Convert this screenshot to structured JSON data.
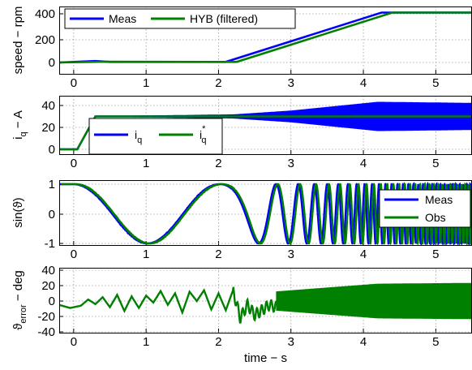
{
  "chart_data": [
    {
      "type": "line",
      "ylabel": "speed − rpm",
      "xlim": [
        -0.2,
        5.5
      ],
      "ylim": [
        -50,
        450
      ],
      "xticks": [
        "0",
        "1",
        "2",
        "3",
        "4",
        "5"
      ],
      "yticks": [
        "0",
        "200",
        "400"
      ],
      "grid": true,
      "legend": "top-left, horizontal",
      "series": [
        {
          "name": "Meas",
          "color": "#0000ff",
          "x": [
            -0.2,
            0.3,
            0.5,
            2.1,
            4.25,
            5.5
          ],
          "y": [
            0,
            12,
            5,
            5,
            410,
            410
          ]
        },
        {
          "name": "HYB (filtered)",
          "color": "#008000",
          "x": [
            -0.2,
            0.4,
            2.25,
            4.4,
            5.5
          ],
          "y": [
            0,
            6,
            5,
            410,
            410
          ]
        }
      ]
    },
    {
      "type": "line",
      "ylabel": "i_q − A",
      "xlim": [
        -0.2,
        5.5
      ],
      "ylim": [
        -5,
        50
      ],
      "xticks": [
        "0",
        "1",
        "2",
        "3",
        "4",
        "5"
      ],
      "yticks": [
        "0",
        "20",
        "40"
      ],
      "grid": true,
      "legend": "lower-left, horizontal",
      "series": [
        {
          "name": "i_q",
          "color": "#0000ff",
          "x": [
            -0.2,
            0.05,
            0.3,
            2.2,
            3.0,
            4.2,
            5.5
          ],
          "y_center": [
            0,
            0,
            30,
            30,
            30,
            30,
            30
          ],
          "y_amplitude": [
            0,
            0,
            0,
            1.5,
            5,
            13,
            12
          ]
        },
        {
          "name": "i_q*",
          "color": "#008000",
          "x": [
            -0.2,
            0.05,
            0.3,
            5.5
          ],
          "y": [
            0,
            0,
            30,
            30
          ]
        }
      ]
    },
    {
      "type": "line",
      "ylabel": "sin(ϑ)",
      "xlim": [
        -0.2,
        5.5
      ],
      "ylim": [
        -1,
        1
      ],
      "xticks": [
        "0",
        "1",
        "2",
        "3",
        "4",
        "5"
      ],
      "yticks": [
        "-1",
        "0",
        "1"
      ],
      "grid": true,
      "legend": "top-right, vertical",
      "series": [
        {
          "name": "Meas",
          "color": "#0000ff",
          "signal": "sin(theta(t)), theta integrated from measured speed"
        },
        {
          "name": "Obs",
          "color": "#008000",
          "signal": "sin(theta(t)), observer estimate"
        }
      ]
    },
    {
      "type": "line",
      "ylabel": "ϑ_error − deg",
      "xlabel": "time − s",
      "xlim": [
        -0.2,
        5.5
      ],
      "ylim": [
        -40,
        40
      ],
      "xticks": [
        "0",
        "1",
        "2",
        "3",
        "4",
        "5"
      ],
      "yticks": [
        "-40",
        "-20",
        "0",
        "20",
        "40"
      ],
      "grid": true,
      "series": [
        {
          "color": "#008000",
          "x": [
            -0.2,
            -0.05,
            0.1,
            0.2,
            0.3,
            0.4,
            0.5,
            0.6,
            0.7,
            0.8,
            0.9,
            1.0,
            1.1,
            1.2,
            1.3,
            1.4,
            1.5,
            1.6,
            1.7,
            1.8,
            1.9,
            2.0,
            2.1,
            2.2,
            2.3,
            2.4,
            2.5,
            2.6,
            2.7,
            2.8
          ],
          "y": [
            -5,
            -9,
            -6,
            2,
            -4,
            5,
            -8,
            8,
            -13,
            6,
            -9,
            7,
            -2,
            13,
            -5,
            10,
            -15,
            12,
            0,
            14,
            -11,
            10,
            -12,
            14,
            -22,
            -5,
            -18,
            -12,
            -5,
            -8
          ],
          "band_after_2_8": {
            "x": [
              2.8,
              4.2,
              5.5
            ],
            "amplitude": [
              12,
              22,
              23
            ]
          }
        }
      ]
    }
  ]
}
